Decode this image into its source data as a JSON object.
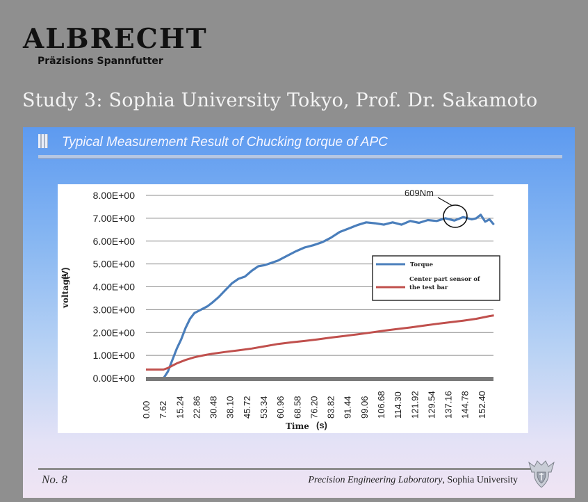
{
  "brand": {
    "name": "ALBRECHT",
    "subtitle": "Präzisions Spannfutter"
  },
  "study_title": "Study 3: Sophia University Tokyo, Prof. Dr. Sakamoto",
  "slide": {
    "title": "Typical Measurement Result of Chucking torque of APC",
    "number": "No. 8",
    "lab_italic": "Precision Engineering Laboratory",
    "lab_rest": ", Sophia University"
  },
  "chart_data": {
    "type": "line",
    "title": "",
    "xlabel": "Time",
    "xunit": "(s)",
    "ylabel": "voltage",
    "yunit": "(V)",
    "xlim": [
      0,
      157.8
    ],
    "ylim": [
      0,
      8
    ],
    "grid": true,
    "legend_position": "right",
    "x_ticks": [
      "0.00",
      "7.62",
      "15.24",
      "22.86",
      "30.48",
      "38.10",
      "45.72",
      "53.34",
      "60.96",
      "68.58",
      "76.20",
      "83.82",
      "91.44",
      "99.06",
      "106.68",
      "114.30",
      "121.92",
      "129.54",
      "137.16",
      "144.78",
      "152.40"
    ],
    "y_ticks": [
      "0.00E+00",
      "1.00E+00",
      "2.00E+00",
      "3.00E+00",
      "4.00E+00",
      "5.00E+00",
      "6.00E+00",
      "7.00E+00",
      "8.00E+00"
    ],
    "annotation": {
      "text": "609Nm",
      "x": 142,
      "y": 7.05
    },
    "series": [
      {
        "name": "Torque",
        "color": "#4a7ebb",
        "x": [
          0,
          8,
          10,
          12,
          14,
          16,
          18,
          20,
          22,
          24,
          26,
          28,
          30,
          33,
          36,
          39,
          42,
          45,
          48,
          51,
          54,
          57,
          60,
          64,
          68,
          72,
          76,
          80,
          84,
          88,
          92,
          96,
          100,
          104,
          108,
          112,
          116,
          120,
          124,
          128,
          132,
          136,
          140,
          144,
          148,
          150,
          152,
          154,
          156,
          158
        ],
        "y": [
          0,
          0,
          0.3,
          0.8,
          1.3,
          1.7,
          2.2,
          2.6,
          2.85,
          2.95,
          3.05,
          3.15,
          3.3,
          3.55,
          3.85,
          4.15,
          4.35,
          4.45,
          4.7,
          4.9,
          4.95,
          5.05,
          5.15,
          5.35,
          5.55,
          5.72,
          5.82,
          5.95,
          6.15,
          6.4,
          6.55,
          6.7,
          6.82,
          6.78,
          6.72,
          6.82,
          6.72,
          6.88,
          6.8,
          6.92,
          6.88,
          7.0,
          6.9,
          7.05,
          6.95,
          7.0,
          7.15,
          6.85,
          6.95,
          6.72
        ]
      },
      {
        "name": "Center part sensor of the test bar",
        "color": "#c0504d",
        "x": [
          0,
          8,
          10,
          14,
          18,
          22,
          26,
          30,
          36,
          42,
          48,
          54,
          60,
          66,
          72,
          78,
          84,
          90,
          96,
          102,
          108,
          114,
          120,
          126,
          132,
          138,
          144,
          150,
          156,
          158
        ],
        "y": [
          0.38,
          0.38,
          0.45,
          0.65,
          0.8,
          0.92,
          1.0,
          1.07,
          1.15,
          1.22,
          1.3,
          1.4,
          1.5,
          1.57,
          1.63,
          1.7,
          1.78,
          1.85,
          1.92,
          2.0,
          2.08,
          2.15,
          2.22,
          2.3,
          2.38,
          2.45,
          2.52,
          2.6,
          2.72,
          2.75
        ]
      }
    ]
  }
}
